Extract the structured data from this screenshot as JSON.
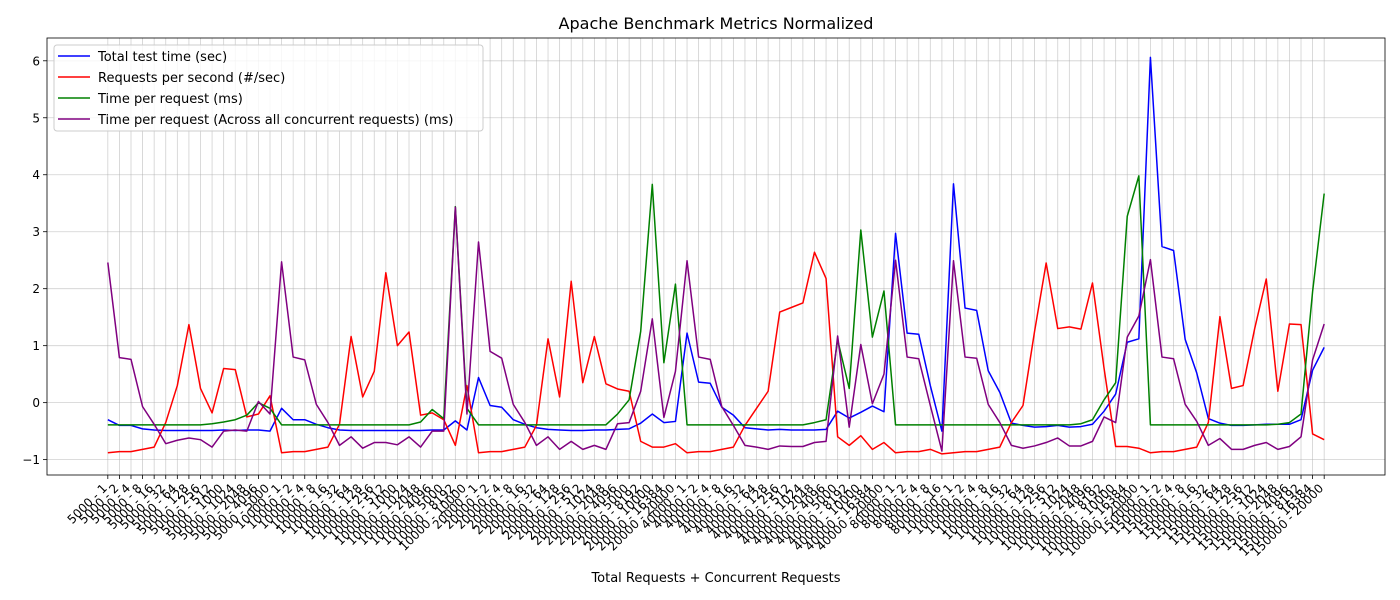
{
  "chart_data": {
    "type": "line",
    "title": "Apache Benchmark Metrics Normalized",
    "x_label": "Total Requests + Concurrent Requests",
    "categories": [
      "5000 - 1",
      "5000 - 2",
      "5000 - 4",
      "5000 - 8",
      "5000 - 16",
      "5000 - 32",
      "5000 - 64",
      "5000 - 128",
      "5000 - 256",
      "5000 - 512",
      "5000 - 1000",
      "5000 - 1024",
      "5000 - 2048",
      "5000 - 4096",
      "5000 - 5000",
      "10000 - 1",
      "10000 - 2",
      "10000 - 4",
      "10000 - 8",
      "10000 - 16",
      "10000 - 32",
      "10000 - 64",
      "10000 - 128",
      "10000 - 256",
      "10000 - 512",
      "10000 - 1000",
      "10000 - 1024",
      "10000 - 2048",
      "10000 - 4096",
      "10000 - 5000",
      "10000 - 8192",
      "10000 - 10000",
      "20000 - 1",
      "20000 - 2",
      "20000 - 4",
      "20000 - 8",
      "20000 - 16",
      "20000 - 32",
      "20000 - 64",
      "20000 - 128",
      "20000 - 256",
      "20000 - 512",
      "20000 - 1024",
      "20000 - 2048",
      "20000 - 4096",
      "20000 - 5000",
      "20000 - 8192",
      "20000 - 10000",
      "20000 - 16384",
      "20000 - 20000",
      "40000 - 1",
      "40000 - 2",
      "40000 - 4",
      "40000 - 8",
      "40000 - 16",
      "40000 - 32",
      "40000 - 64",
      "40000 - 128",
      "40000 - 256",
      "40000 - 512",
      "40000 - 1024",
      "40000 - 2048",
      "40000 - 4096",
      "40000 - 5000",
      "40000 - 8192",
      "40000 - 10000",
      "40000 - 16384",
      "40000 - 20000",
      "80000 - 1",
      "80000 - 2",
      "80000 - 4",
      "80000 - 8",
      "80000 - 16",
      "100000 - 1",
      "100000 - 2",
      "100000 - 4",
      "100000 - 8",
      "100000 - 16",
      "100000 - 32",
      "100000 - 64",
      "100000 - 128",
      "100000 - 256",
      "100000 - 512",
      "100000 - 1024",
      "100000 - 2048",
      "100000 - 4096",
      "100000 - 8192",
      "100000 - 10000",
      "100000 - 16384",
      "100000 - 20000",
      "150000 - 1",
      "150000 - 2",
      "150000 - 4",
      "150000 - 8",
      "150000 - 16",
      "150000 - 32",
      "150000 - 64",
      "150000 - 128",
      "150000 - 256",
      "150000 - 512",
      "150000 - 1024",
      "150000 - 2048",
      "150000 - 4096",
      "150000 - 8192",
      "150000 - 16384",
      "150000 - 20000"
    ],
    "series": [
      {
        "name": "Total test time (sec)",
        "color": "#0000ff",
        "values": [
          -0.3,
          -0.4,
          -0.4,
          -0.46,
          -0.48,
          -0.49,
          -0.49,
          -0.49,
          -0.49,
          -0.49,
          -0.48,
          -0.49,
          -0.48,
          -0.48,
          -0.5,
          -0.1,
          -0.3,
          -0.3,
          -0.38,
          -0.44,
          -0.48,
          -0.49,
          -0.49,
          -0.49,
          -0.49,
          -0.49,
          -0.49,
          -0.49,
          -0.48,
          -0.48,
          -0.32,
          -0.48,
          0.44,
          -0.05,
          -0.08,
          -0.3,
          -0.38,
          -0.44,
          -0.47,
          -0.48,
          -0.49,
          -0.49,
          -0.48,
          -0.48,
          -0.47,
          -0.46,
          -0.36,
          -0.2,
          -0.35,
          -0.33,
          1.22,
          0.36,
          0.34,
          -0.08,
          -0.22,
          -0.44,
          -0.46,
          -0.48,
          -0.47,
          -0.48,
          -0.48,
          -0.48,
          -0.47,
          -0.15,
          -0.27,
          -0.17,
          -0.06,
          -0.16,
          2.97,
          1.22,
          1.2,
          0.3,
          -0.5,
          3.84,
          1.66,
          1.62,
          0.56,
          0.18,
          -0.36,
          -0.4,
          -0.43,
          -0.42,
          -0.4,
          -0.43,
          -0.42,
          -0.38,
          -0.15,
          0.15,
          1.06,
          1.12,
          6.06,
          2.74,
          2.67,
          1.11,
          0.52,
          -0.28,
          -0.36,
          -0.4,
          -0.4,
          -0.39,
          -0.38,
          -0.38,
          -0.38,
          -0.3,
          0.57,
          0.97
        ]
      },
      {
        "name": "Requests per second (#/sec)",
        "color": "#ff0000",
        "values": [
          -0.88,
          -0.86,
          -0.86,
          -0.82,
          -0.78,
          -0.35,
          0.3,
          1.37,
          0.25,
          -0.18,
          0.6,
          0.58,
          -0.25,
          -0.2,
          0.12,
          -0.88,
          -0.86,
          -0.86,
          -0.82,
          -0.78,
          -0.38,
          1.16,
          0.1,
          0.55,
          2.28,
          1.0,
          1.24,
          -0.22,
          -0.18,
          -0.3,
          -0.75,
          0.3,
          -0.88,
          -0.86,
          -0.86,
          -0.82,
          -0.78,
          -0.4,
          1.12,
          0.1,
          2.13,
          0.35,
          1.16,
          0.33,
          0.24,
          0.2,
          -0.68,
          -0.78,
          -0.78,
          -0.72,
          -0.88,
          -0.86,
          -0.86,
          -0.82,
          -0.78,
          -0.4,
          -0.1,
          0.2,
          1.59,
          1.67,
          1.75,
          2.64,
          2.18,
          -0.6,
          -0.75,
          -0.58,
          -0.82,
          -0.7,
          -0.88,
          -0.86,
          -0.86,
          -0.82,
          -0.9,
          -0.88,
          -0.86,
          -0.86,
          -0.82,
          -0.78,
          -0.35,
          -0.05,
          1.25,
          2.45,
          1.3,
          1.33,
          1.29,
          2.1,
          0.6,
          -0.77,
          -0.77,
          -0.8,
          -0.88,
          -0.86,
          -0.86,
          -0.82,
          -0.78,
          -0.35,
          1.51,
          0.25,
          0.3,
          1.3,
          2.17,
          0.2,
          1.38,
          1.37,
          -0.55,
          -0.65
        ]
      },
      {
        "name": "Time per request (ms)",
        "color": "#008000",
        "values": [
          -0.39,
          -0.39,
          -0.39,
          -0.39,
          -0.39,
          -0.39,
          -0.39,
          -0.39,
          -0.39,
          -0.37,
          -0.34,
          -0.3,
          -0.22,
          0.0,
          -0.1,
          -0.39,
          -0.39,
          -0.39,
          -0.39,
          -0.39,
          -0.39,
          -0.39,
          -0.39,
          -0.39,
          -0.39,
          -0.39,
          -0.39,
          -0.34,
          -0.12,
          -0.28,
          3.44,
          -0.1,
          -0.39,
          -0.39,
          -0.39,
          -0.39,
          -0.39,
          -0.39,
          -0.39,
          -0.39,
          -0.39,
          -0.39,
          -0.39,
          -0.39,
          -0.2,
          0.05,
          1.25,
          3.83,
          0.7,
          2.08,
          -0.39,
          -0.39,
          -0.39,
          -0.39,
          -0.39,
          -0.39,
          -0.39,
          -0.39,
          -0.39,
          -0.39,
          -0.39,
          -0.35,
          -0.3,
          1.1,
          0.25,
          3.03,
          1.15,
          1.96,
          -0.39,
          -0.39,
          -0.39,
          -0.39,
          -0.39,
          -0.39,
          -0.39,
          -0.39,
          -0.39,
          -0.39,
          -0.39,
          -0.39,
          -0.39,
          -0.39,
          -0.39,
          -0.39,
          -0.37,
          -0.3,
          0.05,
          0.35,
          3.27,
          3.98,
          -0.39,
          -0.39,
          -0.39,
          -0.39,
          -0.39,
          -0.39,
          -0.39,
          -0.39,
          -0.39,
          -0.39,
          -0.39,
          -0.38,
          -0.35,
          -0.2,
          1.95,
          3.67
        ]
      },
      {
        "name": "Time per request (Across all concurrent requests) (ms)",
        "color": "#800080",
        "values": [
          2.46,
          0.79,
          0.76,
          -0.07,
          -0.38,
          -0.72,
          -0.66,
          -0.62,
          -0.65,
          -0.78,
          -0.5,
          -0.48,
          -0.5,
          0.02,
          -0.2,
          2.47,
          0.8,
          0.75,
          -0.03,
          -0.35,
          -0.75,
          -0.6,
          -0.8,
          -0.7,
          -0.7,
          -0.74,
          -0.6,
          -0.78,
          -0.5,
          -0.5,
          3.43,
          -0.2,
          2.82,
          0.9,
          0.78,
          -0.03,
          -0.35,
          -0.75,
          -0.6,
          -0.82,
          -0.68,
          -0.82,
          -0.75,
          -0.82,
          -0.37,
          -0.35,
          0.2,
          1.47,
          -0.26,
          0.55,
          2.49,
          0.8,
          0.76,
          -0.07,
          -0.4,
          -0.75,
          -0.78,
          -0.82,
          -0.76,
          -0.77,
          -0.77,
          -0.7,
          -0.68,
          1.17,
          -0.43,
          1.02,
          -0.02,
          0.5,
          2.5,
          0.8,
          0.77,
          -0.05,
          -0.85,
          2.49,
          0.8,
          0.78,
          -0.03,
          -0.35,
          -0.75,
          -0.8,
          -0.76,
          -0.7,
          -0.62,
          -0.76,
          -0.76,
          -0.68,
          -0.25,
          -0.35,
          1.15,
          1.52,
          2.51,
          0.8,
          0.77,
          -0.03,
          -0.33,
          -0.75,
          -0.63,
          -0.82,
          -0.82,
          -0.75,
          -0.7,
          -0.82,
          -0.77,
          -0.6,
          0.75,
          1.38
        ]
      }
    ],
    "ylim": [
      -1.27,
      6.4
    ],
    "yticks": [
      {
        "value": -1,
        "label": "−1"
      },
      0,
      1,
      2,
      3,
      4,
      5,
      6
    ],
    "grid": true,
    "legend": "upper left"
  }
}
